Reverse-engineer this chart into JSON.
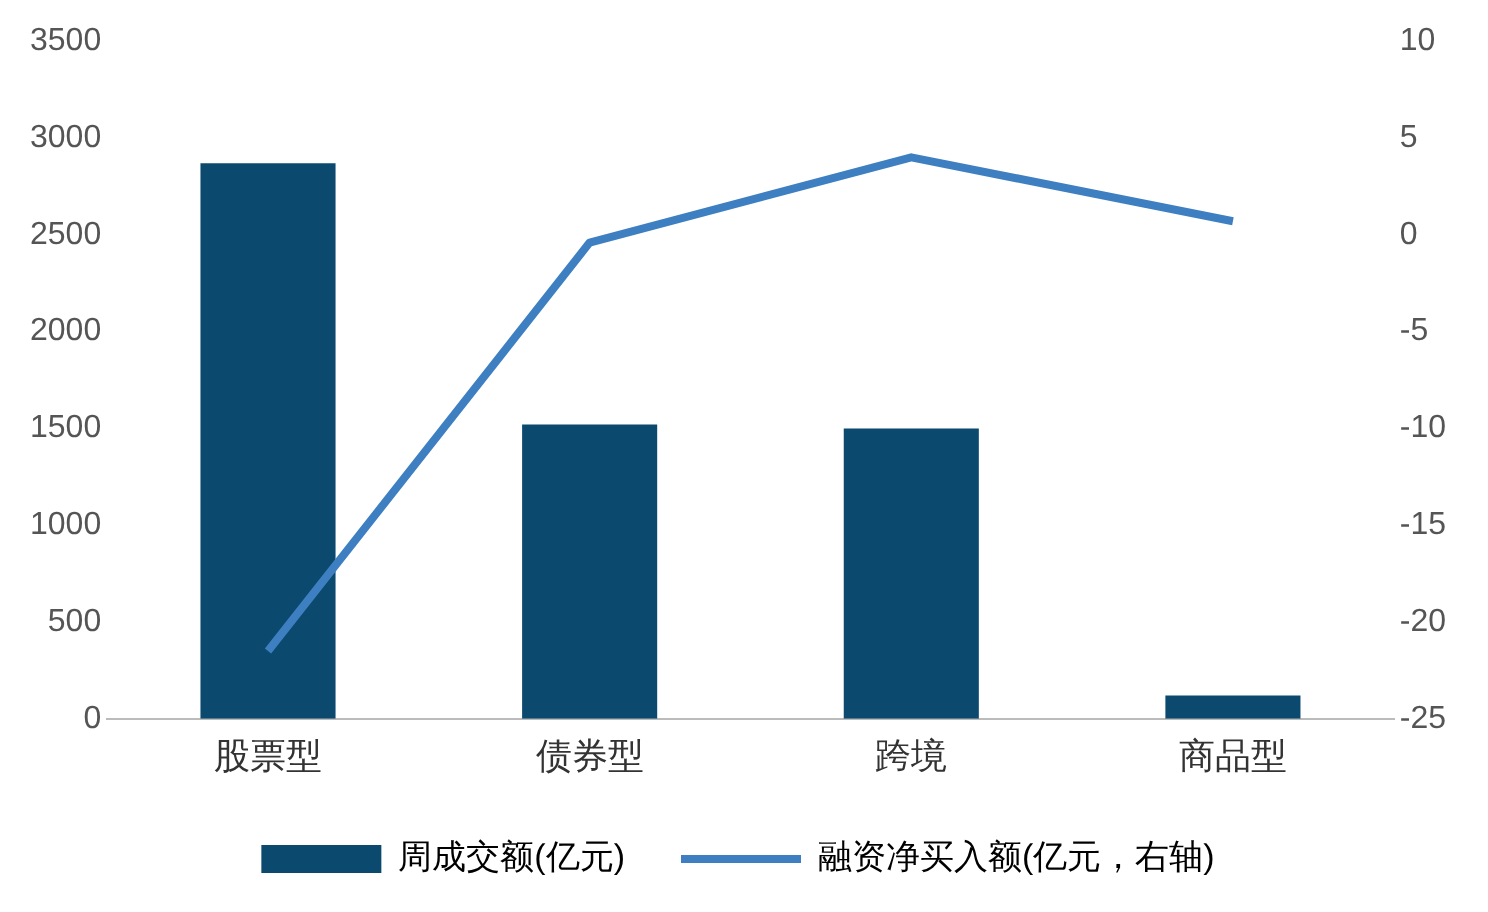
{
  "chart_data": {
    "type": "bar",
    "categories": [
      "股票型",
      "债券型",
      "跨境",
      "商品型"
    ],
    "series": [
      {
        "name": "周成交额(亿元)",
        "color": "#0b4a6e",
        "values": [
          2870,
          1520,
          1500,
          120
        ]
      },
      {
        "name": "融资净买入额(亿元，右轴)",
        "type": "line",
        "axis": "y2",
        "color": "#3e7fc1",
        "values": [
          -21.5,
          -0.4,
          4.0,
          0.7
        ]
      }
    ],
    "ylim": [
      0,
      3500
    ],
    "yticks": [
      0,
      500,
      1000,
      1500,
      2000,
      2500,
      3000,
      3500
    ],
    "y2lim": [
      -25,
      10
    ],
    "y2ticks": [
      -25,
      -20,
      -15,
      -10,
      -5,
      0,
      5,
      10
    ],
    "grid": false,
    "legend": "bottom",
    "marker": "none",
    "line_style": "solid"
  }
}
